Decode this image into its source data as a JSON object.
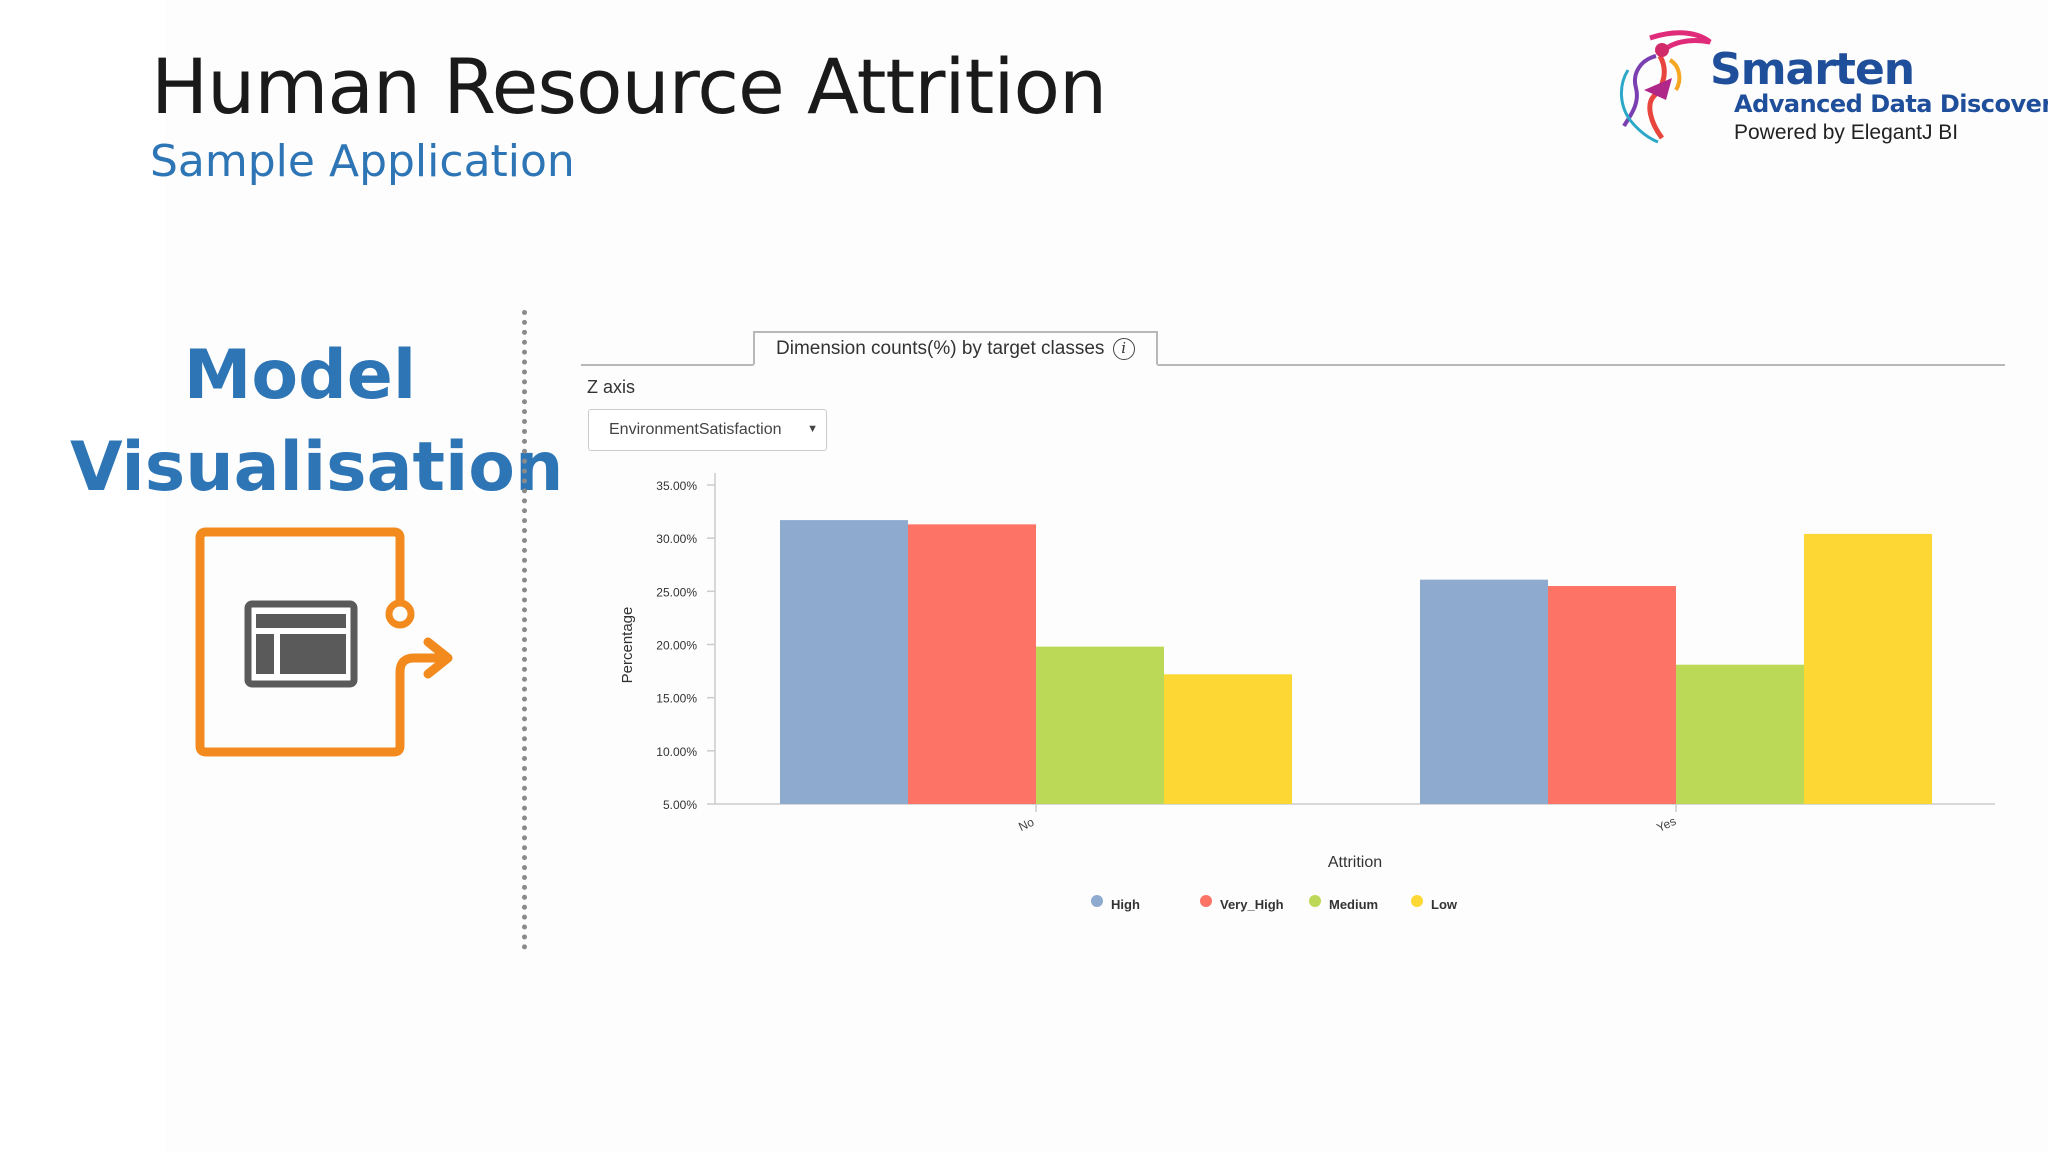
{
  "header": {
    "title": "Human Resource Attrition",
    "subtitle": "Sample Application"
  },
  "logo": {
    "name": "Smarten",
    "tagline": "Advanced Data Discovery",
    "powered_by": "Powered by ElegantJ BI"
  },
  "section": {
    "heading_line1": "Model",
    "heading_line2": "Visualisation",
    "icon": "model-visualisation-icon",
    "accent_color": "#2e75b6",
    "icon_color": "#f28a1e"
  },
  "panel": {
    "tab_label": "Dimension counts(%) by target classes",
    "info_icon": "info-icon",
    "zaxis_label": "Z axis",
    "zaxis_selected": "EnvironmentSatisfaction"
  },
  "chart_data": {
    "type": "bar",
    "title": "",
    "xlabel": "Attrition",
    "ylabel": "Percentage",
    "categories": [
      "No",
      "Yes"
    ],
    "ylim": [
      5,
      35
    ],
    "yticks": [
      "5.00%",
      "10.00%",
      "15.00%",
      "20.00%",
      "25.00%",
      "30.00%",
      "35.00%"
    ],
    "grid": false,
    "legend_position": "bottom",
    "series": [
      {
        "name": "High",
        "color": "#8eaacf",
        "values": [
          31.7,
          26.1
        ]
      },
      {
        "name": "Very_High",
        "color": "#fd7366",
        "values": [
          31.3,
          25.5
        ]
      },
      {
        "name": "Medium",
        "color": "#bbd956",
        "values": [
          19.8,
          18.1
        ]
      },
      {
        "name": "Low",
        "color": "#fdd835",
        "values": [
          17.2,
          30.4
        ]
      }
    ]
  }
}
